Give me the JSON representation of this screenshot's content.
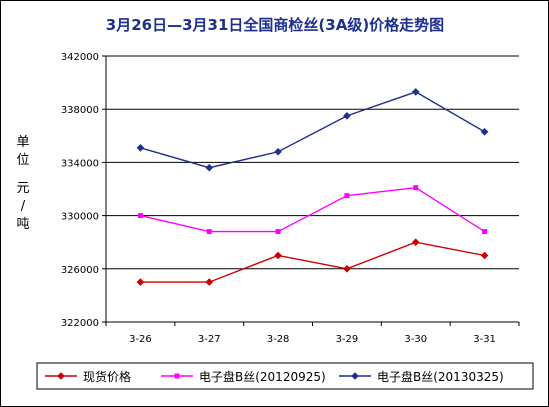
{
  "chart_data": {
    "type": "line",
    "title": "3月26日—3月31日全国商检丝(3A级)价格走势图",
    "ylabel_chars": [
      "单",
      "位",
      "元",
      "/",
      "吨"
    ],
    "xlabel": "",
    "categories": [
      "3-26",
      "3-27",
      "3-28",
      "3-29",
      "3-30",
      "3-31"
    ],
    "ylim": [
      322000,
      342000
    ],
    "yticks": [
      322000,
      326000,
      330000,
      334000,
      338000,
      342000
    ],
    "grid": true,
    "legend_position": "bottom",
    "series": [
      {
        "name": "现货价格",
        "color": "#cc0000",
        "marker": "diamond",
        "values": [
          325000,
          325000,
          327000,
          326000,
          328000,
          327000
        ]
      },
      {
        "name": "电子盘B丝(20120925)",
        "color": "#ff00ff",
        "marker": "square",
        "values": [
          330000,
          328800,
          328800,
          331500,
          332100,
          328800
        ]
      },
      {
        "name": "电子盘B丝(20130325)",
        "color": "#1f2f8f",
        "marker": "diamond",
        "values": [
          335100,
          333600,
          334800,
          337500,
          339300,
          336300
        ]
      }
    ]
  }
}
